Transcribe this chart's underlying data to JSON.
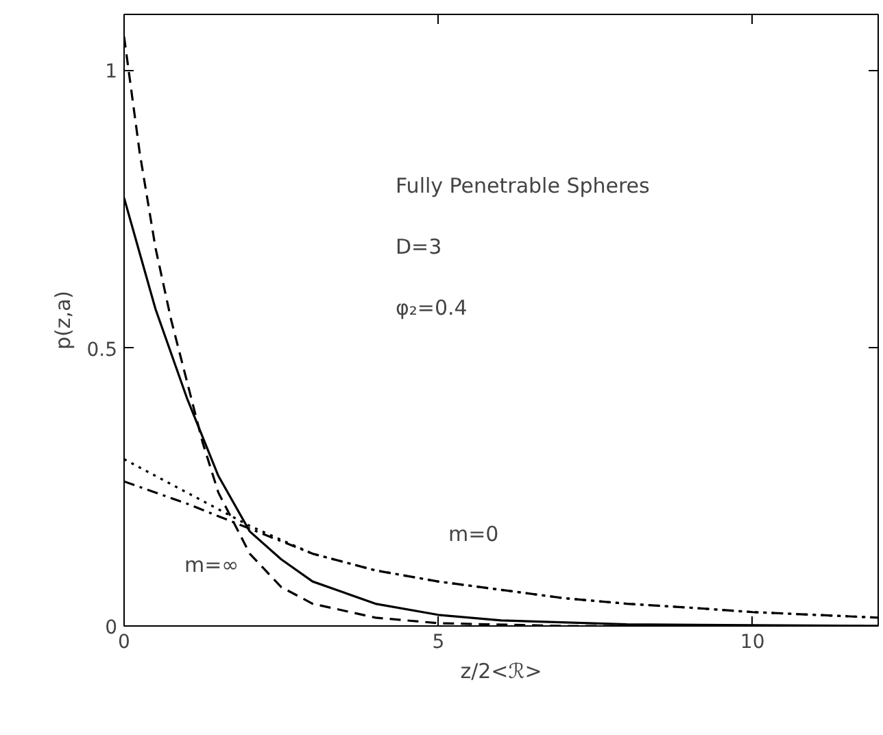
{
  "chart_data": {
    "type": "line",
    "xlabel": "z/2<ℛ>",
    "ylabel": "p(z,a)",
    "xlim": [
      0,
      12
    ],
    "ylim": [
      0,
      1.1
    ],
    "xticks": [
      0,
      5,
      10
    ],
    "yticks": [
      0,
      0.5,
      1
    ],
    "grid": false,
    "series": [
      {
        "color": "#000000",
        "line_style": "solid",
        "x": [
          0,
          0.25,
          0.5,
          1,
          1.5,
          2,
          2.5,
          3,
          3.5,
          4,
          5,
          6,
          8,
          12
        ],
        "values": [
          0.77,
          0.67,
          0.57,
          0.41,
          0.27,
          0.17,
          0.12,
          0.08,
          0.06,
          0.04,
          0.02,
          0.01,
          0.003,
          0
        ]
      },
      {
        "color": "#000000",
        "line_style": "dashed",
        "x": [
          0,
          0.25,
          0.5,
          0.75,
          1,
          1.25,
          1.5,
          2,
          2.5,
          3,
          4,
          5,
          7,
          12
        ],
        "values": [
          1.06,
          0.85,
          0.68,
          0.55,
          0.44,
          0.33,
          0.24,
          0.13,
          0.07,
          0.04,
          0.015,
          0.005,
          0,
          0
        ]
      },
      {
        "color": "#000000",
        "line_style": "dotted",
        "x": [
          0,
          1,
          2,
          3,
          4,
          5,
          6,
          7,
          8,
          9,
          10,
          11,
          12
        ],
        "values": [
          0.3,
          0.24,
          0.18,
          0.13,
          0.1,
          0.08,
          0.065,
          0.05,
          0.04,
          0.033,
          0.025,
          0.02,
          0.015
        ]
      },
      {
        "color": "#000000",
        "line_style": "dashdot",
        "x": [
          0,
          1,
          2,
          3,
          4,
          5,
          6,
          7,
          8,
          9,
          10,
          11,
          12
        ],
        "values": [
          0.26,
          0.22,
          0.175,
          0.13,
          0.1,
          0.08,
          0.065,
          0.05,
          0.04,
          0.033,
          0.025,
          0.02,
          0.015
        ]
      }
    ],
    "annotations": [
      "Fully Penetrable Spheres",
      "D=3",
      "φ₂=0.4",
      "m=∞",
      "m=0"
    ]
  }
}
